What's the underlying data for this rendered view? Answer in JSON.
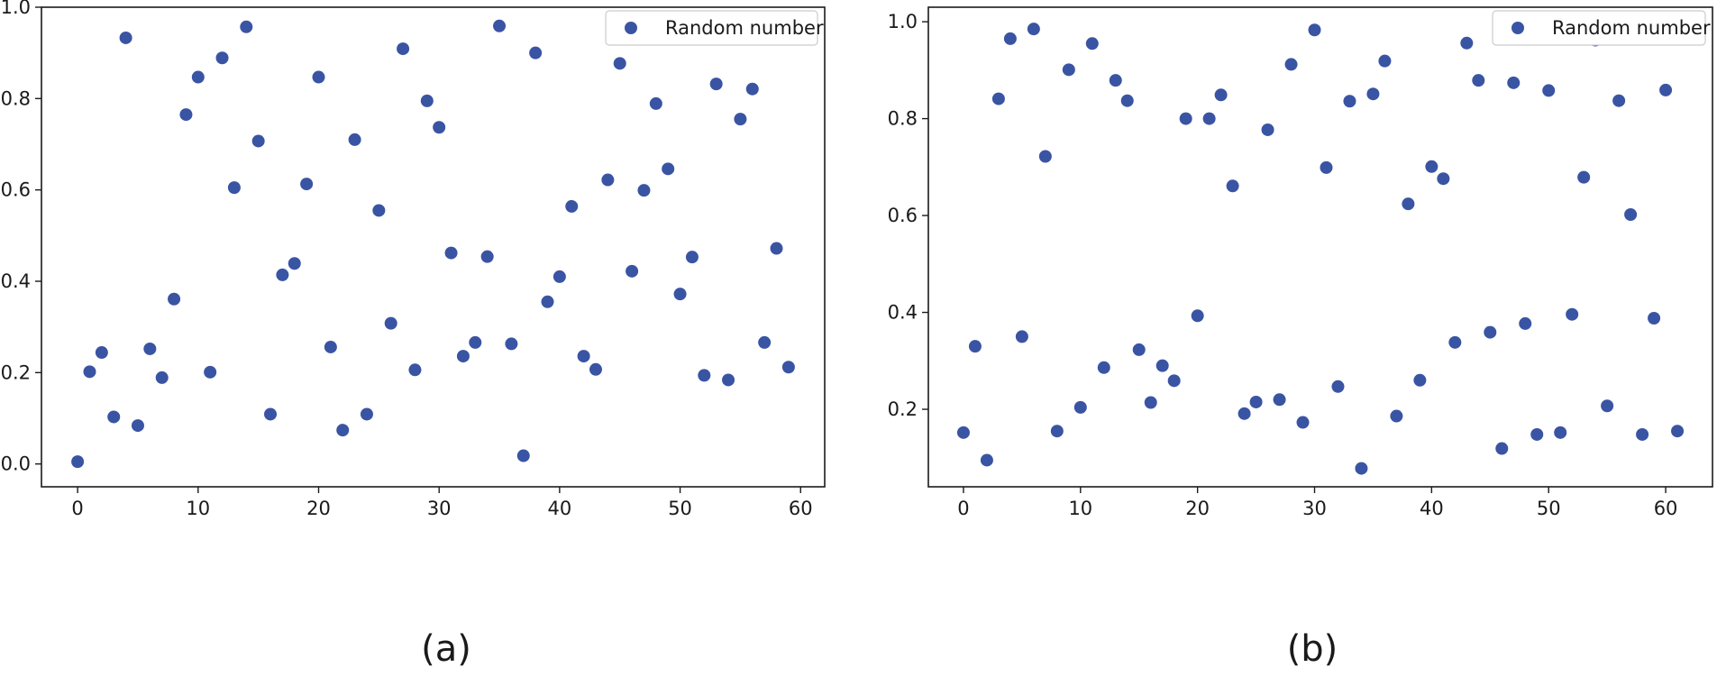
{
  "chart_data": [
    {
      "type": "scatter",
      "caption": "(a)",
      "legend": "Random number",
      "legend_loc": "top-right",
      "marker_color": "#3a54a4",
      "grid": false,
      "xlim": [
        -3,
        62
      ],
      "ylim": [
        -0.05,
        1.0
      ],
      "xticks": [
        0,
        10,
        20,
        30,
        40,
        50,
        60
      ],
      "yticks": [
        0.0,
        0.2,
        0.4,
        0.6,
        0.8,
        1.0
      ],
      "series": [
        {
          "name": "Random number",
          "x": [
            0,
            1,
            2,
            3,
            4,
            5,
            6,
            7,
            8,
            9,
            10,
            11,
            12,
            13,
            14,
            15,
            16,
            17,
            18,
            19,
            20,
            21,
            22,
            23,
            24,
            25,
            26,
            27,
            28,
            29,
            30,
            31,
            32,
            33,
            34,
            35,
            36,
            37,
            38,
            39,
            40,
            41,
            42,
            43,
            44,
            45,
            46,
            47,
            48,
            49,
            50,
            51,
            52,
            53,
            54,
            55,
            56,
            57,
            58,
            59
          ],
          "y": [
            0.005,
            0.202,
            0.244,
            0.103,
            0.933,
            0.084,
            0.252,
            0.189,
            0.361,
            0.765,
            0.847,
            0.201,
            0.889,
            0.605,
            0.957,
            0.707,
            0.109,
            0.414,
            0.439,
            0.613,
            0.847,
            0.256,
            0.074,
            0.71,
            0.109,
            0.555,
            0.308,
            0.909,
            0.206,
            0.795,
            0.737,
            0.462,
            0.236,
            0.266,
            0.454,
            0.959,
            0.263,
            0.018,
            0.9,
            0.355,
            0.41,
            0.564,
            0.236,
            0.207,
            0.622,
            0.877,
            0.422,
            0.599,
            0.789,
            0.646,
            0.372,
            0.453,
            0.194,
            0.832,
            0.184,
            0.755,
            0.821,
            0.266,
            0.472,
            0.212
          ]
        }
      ]
    },
    {
      "type": "scatter",
      "caption": "(b)",
      "legend": "Random number",
      "legend_loc": "top-right",
      "marker_color": "#3a54a4",
      "grid": false,
      "xlim": [
        -3,
        64
      ],
      "ylim": [
        0.04,
        1.03
      ],
      "xticks": [
        0,
        10,
        20,
        30,
        40,
        50,
        60
      ],
      "yticks": [
        0.2,
        0.4,
        0.6,
        0.8,
        1.0
      ],
      "series": [
        {
          "name": "Random number",
          "x": [
            0,
            1,
            2,
            3,
            4,
            5,
            6,
            7,
            8,
            9,
            10,
            11,
            12,
            13,
            14,
            15,
            16,
            17,
            18,
            19,
            20,
            21,
            22,
            23,
            24,
            25,
            26,
            27,
            28,
            29,
            30,
            31,
            32,
            33,
            34,
            35,
            36,
            37,
            38,
            39,
            40,
            41,
            42,
            43,
            44,
            45,
            46,
            47,
            48,
            49,
            50,
            51,
            52,
            53,
            54,
            55,
            56,
            57,
            58,
            59,
            60,
            61
          ],
          "y": [
            0.152,
            0.33,
            0.095,
            0.841,
            0.965,
            0.35,
            0.985,
            0.722,
            0.155,
            0.901,
            0.204,
            0.955,
            0.286,
            0.879,
            0.837,
            0.323,
            0.214,
            0.29,
            0.259,
            0.8,
            0.393,
            0.8,
            0.849,
            0.661,
            0.191,
            0.215,
            0.777,
            0.22,
            0.912,
            0.173,
            0.983,
            0.699,
            0.247,
            0.836,
            0.078,
            0.851,
            0.919,
            0.186,
            0.624,
            0.26,
            0.701,
            0.676,
            0.338,
            0.956,
            0.879,
            0.359,
            0.119,
            0.874,
            0.377,
            0.148,
            0.858,
            0.152,
            0.396,
            0.679,
            0.962,
            0.207,
            0.837,
            0.602,
            0.148,
            0.388,
            0.859,
            0.155
          ]
        }
      ]
    }
  ]
}
